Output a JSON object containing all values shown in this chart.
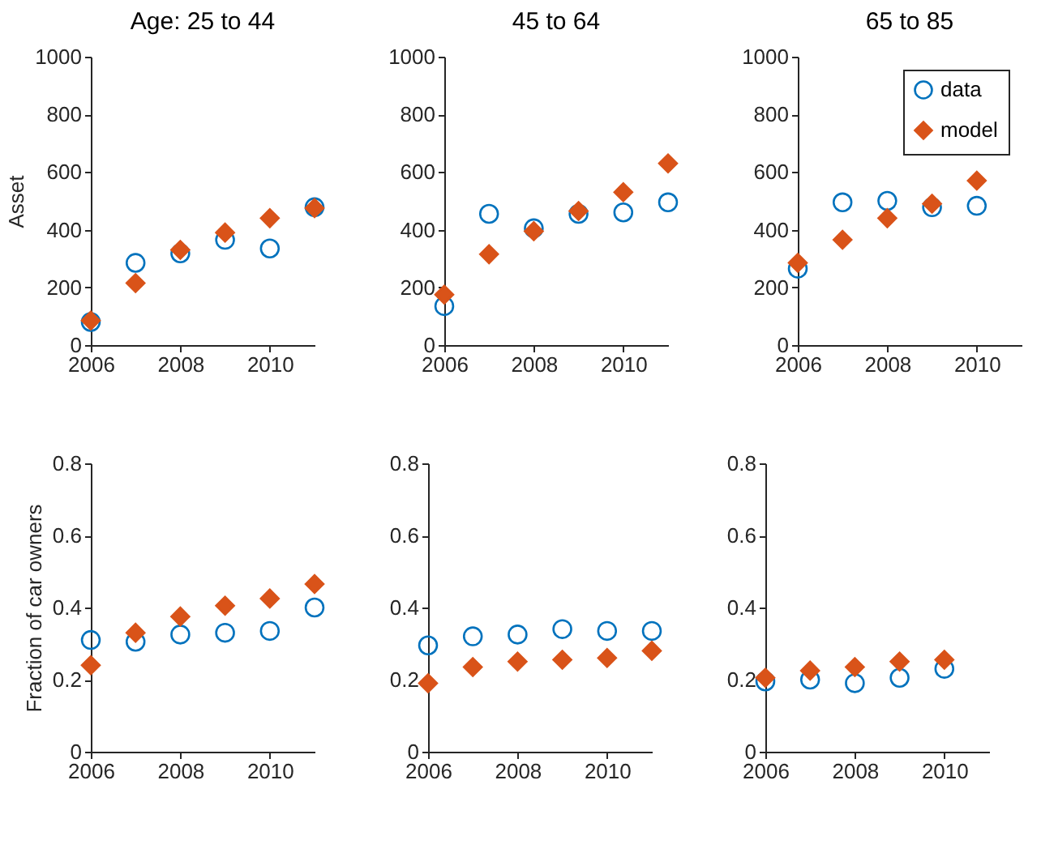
{
  "chart_data": [
    {
      "type": "scatter",
      "title": "Age: 25 to 44",
      "ylabel": "Asset",
      "x": [
        2006,
        2007,
        2008,
        2009,
        2010,
        2011
      ],
      "xlim": [
        2006,
        2011
      ],
      "xticks": [
        2006,
        2008,
        2010
      ],
      "ylim": [
        0,
        1000
      ],
      "yticks": [
        0,
        200,
        400,
        600,
        800,
        1000
      ],
      "grid": false,
      "series": [
        {
          "color": "#0072bd",
          "marker": "circle",
          "values": [
            80,
            285,
            318,
            365,
            335,
            478
          ]
        },
        {
          "color": "#d95319",
          "marker": "diamond",
          "values": [
            85,
            215,
            330,
            390,
            440,
            475
          ]
        }
      ]
    },
    {
      "type": "scatter",
      "title": "45 to 64",
      "x": [
        2006,
        2007,
        2008,
        2009,
        2010,
        2011
      ],
      "xlim": [
        2006,
        2011
      ],
      "xticks": [
        2006,
        2008,
        2010
      ],
      "ylim": [
        0,
        1000
      ],
      "yticks": [
        0,
        200,
        400,
        600,
        800,
        1000
      ],
      "grid": false,
      "series": [
        {
          "color": "#0072bd",
          "marker": "circle",
          "values": [
            135,
            455,
            405,
            455,
            460,
            495
          ]
        },
        {
          "color": "#d95319",
          "marker": "diamond",
          "values": [
            175,
            315,
            395,
            465,
            530,
            630
          ]
        }
      ]
    },
    {
      "type": "scatter",
      "title": "65 to 85",
      "x": [
        2006,
        2007,
        2008,
        2009,
        2010
      ],
      "xlim": [
        2006,
        2011
      ],
      "xticks": [
        2006,
        2008,
        2010
      ],
      "ylim": [
        0,
        1000
      ],
      "yticks": [
        0,
        200,
        400,
        600,
        800,
        1000
      ],
      "grid": false,
      "legend": "top right",
      "series": [
        {
          "name": "data",
          "color": "#0072bd",
          "marker": "circle",
          "values": [
            265,
            495,
            500,
            478,
            483
          ]
        },
        {
          "name": "model",
          "color": "#d95319",
          "marker": "diamond",
          "values": [
            285,
            365,
            440,
            490,
            570
          ]
        }
      ]
    },
    {
      "type": "scatter",
      "ylabel": "Fraction of car owners",
      "x": [
        2006,
        2007,
        2008,
        2009,
        2010,
        2011
      ],
      "xlim": [
        2006,
        2011
      ],
      "xticks": [
        2006,
        2008,
        2010
      ],
      "ylim": [
        0,
        0.8
      ],
      "yticks": [
        0,
        0.2,
        0.4,
        0.6,
        0.8
      ],
      "grid": false,
      "series": [
        {
          "color": "#0072bd",
          "marker": "circle",
          "values": [
            0.31,
            0.305,
            0.325,
            0.33,
            0.335,
            0.4
          ]
        },
        {
          "color": "#d95319",
          "marker": "diamond",
          "values": [
            0.24,
            0.33,
            0.375,
            0.405,
            0.425,
            0.465
          ]
        }
      ]
    },
    {
      "type": "scatter",
      "x": [
        2006,
        2007,
        2008,
        2009,
        2010,
        2011
      ],
      "xlim": [
        2006,
        2011
      ],
      "xticks": [
        2006,
        2008,
        2010
      ],
      "ylim": [
        0,
        0.8
      ],
      "yticks": [
        0,
        0.2,
        0.4,
        0.6,
        0.8
      ],
      "grid": false,
      "series": [
        {
          "color": "#0072bd",
          "marker": "circle",
          "values": [
            0.295,
            0.32,
            0.325,
            0.34,
            0.335,
            0.335
          ]
        },
        {
          "color": "#d95319",
          "marker": "diamond",
          "values": [
            0.19,
            0.235,
            0.25,
            0.255,
            0.26,
            0.28
          ]
        }
      ]
    },
    {
      "type": "scatter",
      "x": [
        2006,
        2007,
        2008,
        2009,
        2010
      ],
      "xlim": [
        2006,
        2011
      ],
      "xticks": [
        2006,
        2008,
        2010
      ],
      "ylim": [
        0,
        0.8
      ],
      "yticks": [
        0,
        0.2,
        0.4,
        0.6,
        0.8
      ],
      "grid": false,
      "series": [
        {
          "color": "#0072bd",
          "marker": "circle",
          "values": [
            0.195,
            0.2,
            0.19,
            0.205,
            0.23
          ]
        },
        {
          "color": "#d95319",
          "marker": "diamond",
          "values": [
            0.205,
            0.225,
            0.235,
            0.25,
            0.255
          ]
        }
      ]
    }
  ]
}
